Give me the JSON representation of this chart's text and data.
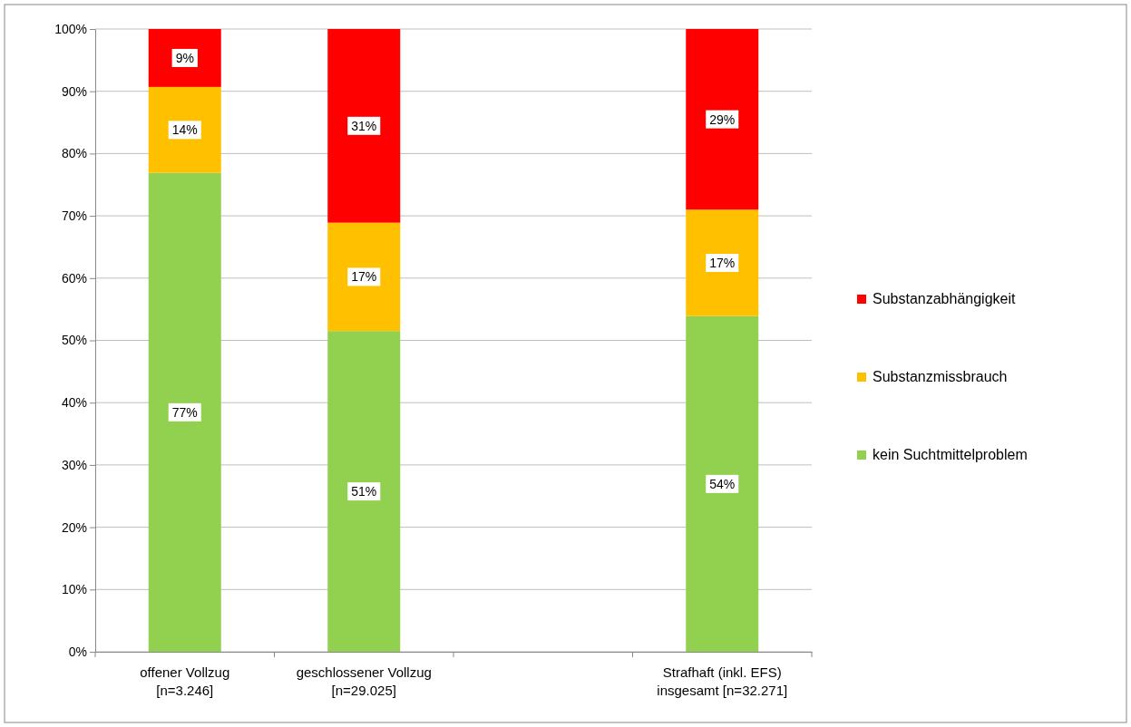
{
  "chart_data": {
    "type": "bar",
    "stacked": true,
    "categories": [
      "offener Vollzug\n[n=3.246]",
      "geschlossener Vollzug\n[n=29.025]",
      null,
      "Strafhaft (inkl. EFS)\ninsgesamt [n=32.271]"
    ],
    "series": [
      {
        "name": "kein Suchtmittelproblem",
        "color": "#92d050",
        "values": [
          76.9,
          51.5,
          null,
          53.9
        ],
        "value_labels": [
          "77%",
          "51%",
          null,
          "54%"
        ]
      },
      {
        "name": "Substanzmissbrauch",
        "color": "#ffc000",
        "values": [
          13.8,
          17.4,
          null,
          17.1
        ],
        "value_labels": [
          "14%",
          "17%",
          null,
          "17%"
        ]
      },
      {
        "name": "Substanzabhängigkeit",
        "color": "#ff0000",
        "values": [
          9.3,
          31.1,
          null,
          29.0
        ],
        "value_labels": [
          "9%",
          "31%",
          null,
          "29%"
        ]
      }
    ],
    "ylim": [
      0,
      100
    ],
    "yticks": [
      {
        "value": 0,
        "label": "0%"
      },
      {
        "value": 10,
        "label": "10%"
      },
      {
        "value": 20,
        "label": "20%"
      },
      {
        "value": 30,
        "label": "30%"
      },
      {
        "value": 40,
        "label": "40%"
      },
      {
        "value": 50,
        "label": "50%"
      },
      {
        "value": 60,
        "label": "60%"
      },
      {
        "value": 70,
        "label": "70%"
      },
      {
        "value": 80,
        "label": "80%"
      },
      {
        "value": 90,
        "label": "90%"
      },
      {
        "value": 100,
        "label": "100%"
      }
    ],
    "grid": "y",
    "legend": "right"
  }
}
